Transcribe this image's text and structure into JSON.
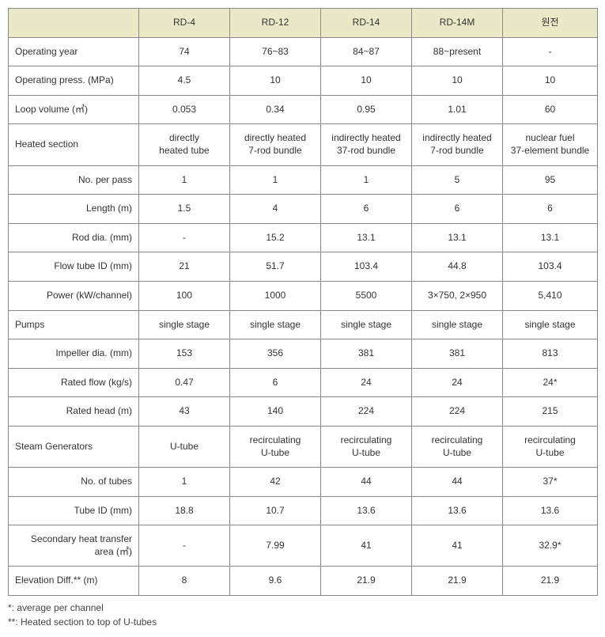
{
  "table": {
    "columns": [
      "",
      "RD-4",
      "RD-12",
      "RD-14",
      "RD-14M",
      "원전"
    ],
    "header_bg": "#eae9c7",
    "border_color": "#888888",
    "font_size": 12,
    "rows": [
      {
        "label": "Operating year",
        "indent": false,
        "cells": [
          "74",
          "76~83",
          "84~87",
          "88~present",
          "-"
        ]
      },
      {
        "label": "Operating press. (MPa)",
        "indent": false,
        "cells": [
          "4.5",
          "10",
          "10",
          "10",
          "10"
        ]
      },
      {
        "label": "Loop volume (㎥)",
        "indent": false,
        "cells": [
          "0.053",
          "0.34",
          "0.95",
          "1.01",
          "60"
        ]
      },
      {
        "label": "Heated section",
        "indent": false,
        "cells": [
          "directly\nheated tube",
          "directly heated\n7-rod bundle",
          "indirectly heated\n37-rod bundle",
          "indirectly heated\n7-rod bundle",
          "nuclear fuel\n37-element bundle"
        ]
      },
      {
        "label": "No. per pass",
        "indent": true,
        "cells": [
          "1",
          "1",
          "1",
          "5",
          "95"
        ]
      },
      {
        "label": "Length (m)",
        "indent": true,
        "cells": [
          "1.5",
          "4",
          "6",
          "6",
          "6"
        ]
      },
      {
        "label": "Rod dia. (mm)",
        "indent": true,
        "cells": [
          "-",
          "15.2",
          "13.1",
          "13.1",
          "13.1"
        ]
      },
      {
        "label": "Flow tube ID (mm)",
        "indent": true,
        "cells": [
          "21",
          "51.7",
          "103.4",
          "44.8",
          "103.4"
        ]
      },
      {
        "label": "Power (kW/channel)",
        "indent": true,
        "cells": [
          "100",
          "1000",
          "5500",
          "3×750, 2×950",
          "5,410"
        ]
      },
      {
        "label": "Pumps",
        "indent": false,
        "cells": [
          "single stage",
          "single stage",
          "single stage",
          "single stage",
          "single stage"
        ]
      },
      {
        "label": "Impeller dia. (mm)",
        "indent": true,
        "cells": [
          "153",
          "356",
          "381",
          "381",
          "813"
        ]
      },
      {
        "label": "Rated flow (kg/s)",
        "indent": true,
        "cells": [
          "0.47",
          "6",
          "24",
          "24",
          "24*"
        ]
      },
      {
        "label": "Rated head (m)",
        "indent": true,
        "cells": [
          "43",
          "140",
          "224",
          "224",
          "215"
        ]
      },
      {
        "label": "Steam Generators",
        "indent": false,
        "cells": [
          "U-tube",
          "recirculating\nU-tube",
          "recirculating\nU-tube",
          "recirculating\nU-tube",
          "recirculating\nU-tube"
        ]
      },
      {
        "label": "No. of tubes",
        "indent": true,
        "cells": [
          "1",
          "42",
          "44",
          "44",
          "37*"
        ]
      },
      {
        "label": "Tube ID (mm)",
        "indent": true,
        "cells": [
          "18.8",
          "10.7",
          "13.6",
          "13.6",
          "13.6"
        ]
      },
      {
        "label": "Secondary heat transfer area (㎡)",
        "indent": true,
        "cells": [
          "-",
          "7.99",
          "41",
          "41",
          "32.9*"
        ]
      },
      {
        "label": "Elevation Diff.**  (m)",
        "indent": false,
        "cells": [
          "8",
          "9.6",
          "21.9",
          "21.9",
          "21.9"
        ]
      }
    ]
  },
  "footnotes": [
    "*: average per channel",
    "**: Heated section to top of U-tubes"
  ]
}
